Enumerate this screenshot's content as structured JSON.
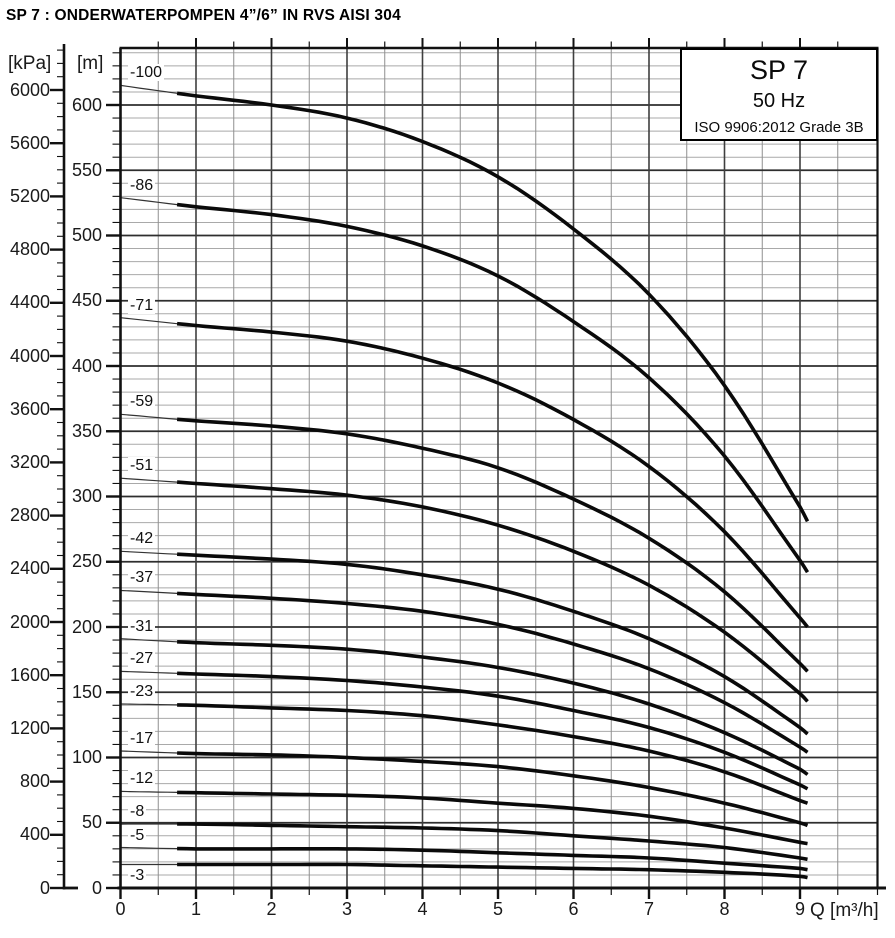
{
  "chart_data": {
    "type": "line",
    "title": "SP 7 : ONDERWATERPOMPEN 4”/6” IN RVS AISI 304",
    "xlabel": "Q [m³/h]",
    "ylabel": "[m]",
    "ylabel_secondary": "[kPa]",
    "xlim": [
      0,
      10
    ],
    "ylim": [
      0,
      643
    ],
    "grid": true,
    "x_major_ticks": [
      0,
      1,
      2,
      3,
      4,
      5,
      6,
      7,
      8,
      9
    ],
    "x_minor_step": 0.5,
    "y_major_ticks_m": [
      0,
      50,
      100,
      150,
      200,
      250,
      300,
      350,
      400,
      450,
      500,
      550,
      600
    ],
    "y_minor_step_m": 10,
    "y_major_ticks_kpa": [
      0,
      400,
      800,
      1200,
      1600,
      2000,
      2400,
      2800,
      3200,
      3600,
      4000,
      4400,
      4800,
      5200,
      5600,
      6000
    ],
    "y_minor_step_kpa": 100,
    "legend": {
      "position": "top-right",
      "lines": [
        "SP 7",
        "50 Hz",
        "ISO 9906:2012 Grade 3B"
      ]
    },
    "curve_style": {
      "thin_until_q": 0.7,
      "color": "#0a0a0a"
    },
    "x": [
      0,
      1,
      2,
      3,
      4,
      5,
      6,
      7,
      8,
      9,
      9.1
    ],
    "series": [
      {
        "name": "-100",
        "values": [
          615,
          607,
          600,
          590,
          572,
          545,
          505,
          455,
          385,
          292,
          281
        ]
      },
      {
        "name": "-86",
        "values": [
          529,
          522,
          516,
          507,
          492,
          469,
          434,
          391,
          331,
          251,
          242
        ]
      },
      {
        "name": "-71",
        "values": [
          437,
          431,
          426,
          419,
          406,
          387,
          359,
          323,
          273,
          207,
          200
        ]
      },
      {
        "name": "-59",
        "values": [
          363,
          358,
          354,
          348,
          337,
          322,
          298,
          268,
          227,
          172,
          166
        ]
      },
      {
        "name": "-51",
        "values": [
          314,
          310,
          306,
          301,
          292,
          278,
          258,
          232,
          196,
          149,
          143
        ]
      },
      {
        "name": "-42",
        "values": [
          258,
          255,
          252,
          248,
          240,
          229,
          212,
          191,
          162,
          123,
          118
        ]
      },
      {
        "name": "-37",
        "values": [
          228,
          225,
          222,
          218,
          212,
          202,
          187,
          168,
          142,
          108,
          104
        ]
      },
      {
        "name": "-31",
        "values": [
          191,
          188,
          186,
          183,
          177,
          169,
          157,
          141,
          119,
          91,
          87
        ]
      },
      {
        "name": "-27",
        "values": [
          166,
          164,
          162,
          159,
          154,
          147,
          136,
          123,
          104,
          79,
          76
        ]
      },
      {
        "name": "-23",
        "values": [
          141,
          140,
          138,
          136,
          132,
          125,
          116,
          105,
          89,
          67,
          65
        ]
      },
      {
        "name": "-17",
        "values": [
          105,
          103,
          102,
          100,
          97,
          93,
          86,
          77,
          65,
          50,
          48
        ]
      },
      {
        "name": "-12",
        "values": [
          74,
          73,
          72,
          71,
          69,
          65,
          61,
          55,
          46,
          35,
          34
        ]
      },
      {
        "name": "-8",
        "values": [
          49,
          49,
          48,
          47,
          46,
          44,
          40,
          36,
          31,
          23,
          22
        ]
      },
      {
        "name": "-5",
        "values": [
          31,
          30,
          30,
          30,
          29,
          27,
          25,
          23,
          19,
          15,
          14
        ]
      },
      {
        "name": "-3",
        "values": [
          18,
          18,
          18,
          18,
          17,
          16,
          15,
          14,
          12,
          9,
          8
        ],
        "label_below": true
      }
    ]
  }
}
